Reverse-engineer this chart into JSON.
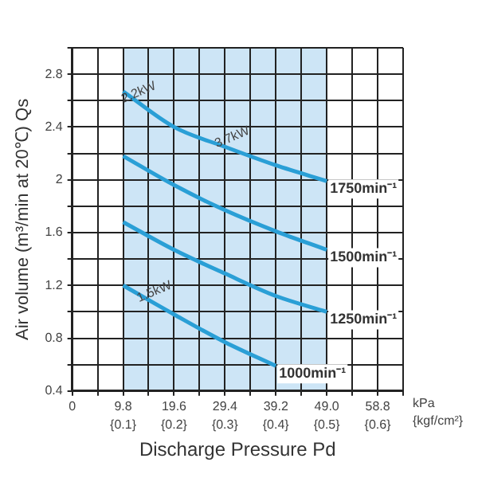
{
  "chart_data": {
    "type": "line",
    "xlabel": "Discharge Pressure Pd",
    "ylabel": "Air volume (m³/min at 20℃) Qs",
    "x": [
      9.8,
      19.6,
      29.4,
      39.2,
      49.0
    ],
    "series": [
      {
        "name": "1750min⁻¹",
        "color": "#2a9fd6",
        "values": [
          2.67,
          2.4,
          2.25,
          2.11,
          1.99
        ]
      },
      {
        "name": "1500min⁻¹",
        "color": "#2a9fd6",
        "values": [
          2.18,
          1.96,
          1.77,
          1.61,
          1.47
        ]
      },
      {
        "name": "1250min⁻¹",
        "color": "#2a9fd6",
        "values": [
          1.68,
          1.47,
          1.29,
          1.12,
          1.0
        ]
      },
      {
        "name": "1000min⁻¹",
        "color": "#2a9fd6",
        "values": [
          1.2,
          0.98,
          0.77,
          0.59,
          null
        ]
      }
    ],
    "xlim": [
      0,
      63.7
    ],
    "xticks": [
      0,
      {
        "value": 4.9,
        "label": null
      },
      9.8,
      {
        "value": 14.7,
        "label": null
      },
      19.6,
      {
        "value": 24.5,
        "label": null
      },
      29.4,
      {
        "value": 34.3,
        "label": null
      },
      39.2,
      {
        "value": 44.1,
        "label": null
      },
      {
        "value": 49.0,
        "label": "49.0"
      },
      {
        "value": 53.9,
        "label": null
      },
      58.8,
      {
        "value": 63.7,
        "label": null
      }
    ],
    "x2lim": [
      0,
      0.65
    ],
    "x2ticks": [
      {
        "value": 0.1,
        "label": "{0.1}"
      },
      {
        "value": 0.2,
        "label": "{0.2}"
      },
      {
        "value": 0.3,
        "label": "{0.3}"
      },
      {
        "value": 0.4,
        "label": "{0.4}"
      },
      {
        "value": 0.5,
        "label": "{0.5}"
      },
      {
        "value": 0.6,
        "label": "{0.6}"
      }
    ],
    "ylim": [
      0.4,
      3.0
    ],
    "yticks": [
      0.4,
      {
        "value": 0.6,
        "label": null
      },
      0.8,
      {
        "value": 1.0,
        "label": null
      },
      1.2,
      {
        "value": 1.4,
        "label": null
      },
      1.6,
      {
        "value": 1.8,
        "label": null
      },
      2.0,
      {
        "value": 2.2,
        "label": null
      },
      2.4,
      {
        "value": 2.6,
        "label": null
      },
      2.8,
      {
        "value": 3.0,
        "label": null
      }
    ],
    "grid": true,
    "legend": false,
    "marker": "none",
    "line_style": "solid",
    "bands": [
      {
        "axis": "x",
        "from": 9.8,
        "to": 49.0,
        "color": "#cde5f6"
      }
    ],
    "annotations": [
      {
        "text": "2.2kW",
        "x": 14,
        "y": 2.55
      },
      {
        "text": "3.7kW",
        "x": 32,
        "y": 2.21
      },
      {
        "text": "1.5kW",
        "x": 17,
        "y": 1.04
      },
      "kPa",
      "{kgf/cm²}"
    ]
  }
}
